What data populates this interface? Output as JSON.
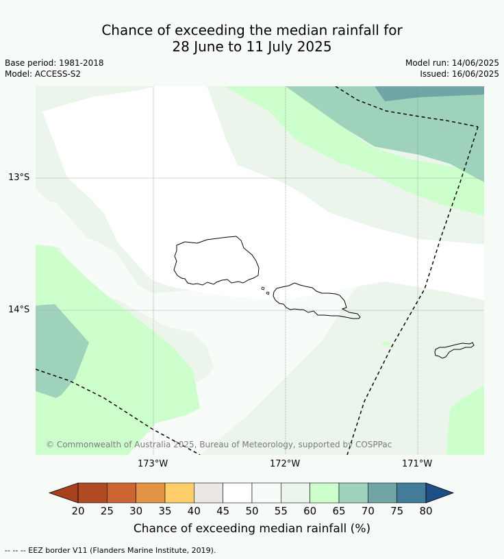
{
  "title_line1": "Chance of exceeding the median rainfall for",
  "title_line2": "28 June to 11 July 2025",
  "base_period": "Base period: 1981-2018",
  "model": "Model: ACCESS-S2",
  "model_run": "Model run: 14/06/2025",
  "issued": "Issued: 16/06/2025",
  "lat_labels": [
    "13°S",
    "14°S"
  ],
  "lon_labels": [
    "173°W",
    "172°W",
    "171°W"
  ],
  "copyright": "© Commonwealth of Australia 2025, Bureau of Meteorology, supported by COSPPac",
  "colorbar": {
    "title": "Chance of exceeding median rainfall (%)",
    "ticks": [
      "20",
      "25",
      "30",
      "35",
      "40",
      "45",
      "50",
      "55",
      "60",
      "65",
      "70",
      "75",
      "80"
    ],
    "colors": [
      "#b04a25",
      "#cc6532",
      "#e39445",
      "#fdcd6a",
      "#ebe8e4",
      "#ffffff",
      "#f8fcf8",
      "#ebf5eb",
      "#ccffcc",
      "#9fd2bb",
      "#6fa5a5",
      "#427c98"
    ],
    "low_extend_color": "#a8401d",
    "high_extend_color": "#1d4f85"
  },
  "legend_footer": "--  --  -- EEZ border V11 (Flanders Marine Institute, 2019).",
  "fill_colors": {
    "c45_50": "#ffffff",
    "c50_55": "#f8fcf8",
    "c55_60": "#ebf5eb",
    "c60_65": "#ccffcc",
    "c65_70": "#9fd2bb",
    "c70_75": "#6fa5a5"
  }
}
